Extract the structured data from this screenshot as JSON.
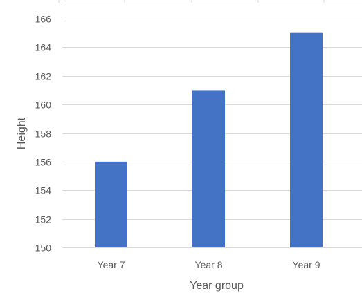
{
  "chart_data": {
    "type": "bar",
    "title": "",
    "categories": [
      "Year 7",
      "Year 8",
      "Year 9"
    ],
    "values": [
      156,
      161,
      165
    ],
    "xlabel": "Year group",
    "ylabel": "Height",
    "ylim": [
      150,
      166
    ],
    "yticks": [
      "150",
      "152",
      "154",
      "156",
      "158",
      "160",
      "162",
      "164",
      "166"
    ],
    "grid": true,
    "legend": "none",
    "colors": {
      "bar": "#4472C4",
      "grid": "#D9D9D9",
      "text": "#595959"
    }
  }
}
